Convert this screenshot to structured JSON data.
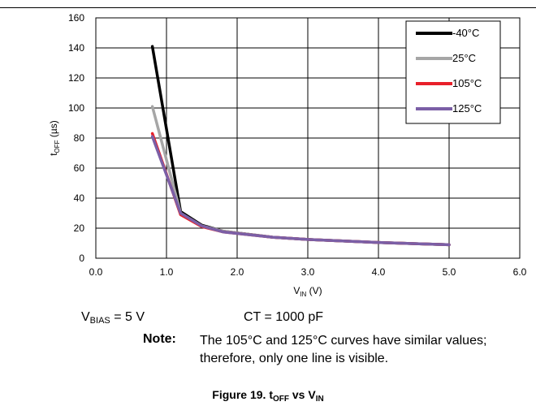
{
  "conditions": {
    "bias_label": "V",
    "bias_sub": "BIAS",
    "bias_value": " = 5 V",
    "ct_text": "CT = 1000 pF"
  },
  "note": {
    "label": "Note:",
    "text": "The 105°C and 125°C curves have similar values; therefore, only one line is visible."
  },
  "caption": {
    "prefix": "Figure 19. t",
    "sub1": "OFF",
    "mid": " vs V",
    "sub2": "IN"
  },
  "chart_data": {
    "type": "line",
    "xlabel": "V",
    "xlabel_sub": "IN",
    "xlabel_unit": " (V)",
    "ylabel": "t",
    "ylabel_sub": "OFF",
    "ylabel_unit": " (µs)",
    "xlim": [
      0,
      6
    ],
    "ylim": [
      0,
      160
    ],
    "xticks": [
      "0.0",
      "1.0",
      "2.0",
      "3.0",
      "4.0",
      "5.0",
      "6.0"
    ],
    "yticks": [
      "0",
      "20",
      "40",
      "60",
      "80",
      "100",
      "120",
      "140",
      "160"
    ],
    "grid": true,
    "legend": "top-right",
    "series": [
      {
        "name": "-40°C",
        "color": "#000000",
        "x": [
          0.8,
          1.2,
          1.5,
          1.8,
          2.5,
          3.0,
          4.0,
          5.0
        ],
        "y": [
          141,
          31,
          22,
          18,
          14,
          12.5,
          10.5,
          9
        ]
      },
      {
        "name": "25°C",
        "color": "#a6a6a6",
        "x": [
          0.8,
          1.2,
          1.5,
          1.8,
          2.5,
          3.0,
          4.0,
          5.0
        ],
        "y": [
          101,
          30,
          21.5,
          18,
          14,
          12.5,
          10.5,
          9
        ]
      },
      {
        "name": "105°C",
        "color": "#e8202a",
        "x": [
          0.8,
          1.2,
          1.5,
          1.8,
          2.5,
          3.0,
          4.0,
          5.0
        ],
        "y": [
          83,
          29,
          21,
          17.5,
          14,
          12.5,
          10.5,
          9
        ]
      },
      {
        "name": "125°C",
        "color": "#7b5fa6",
        "x": [
          0.8,
          1.2,
          1.5,
          1.8,
          2.5,
          3.0,
          4.0,
          5.0
        ],
        "y": [
          81,
          30,
          21.5,
          17.5,
          14,
          12.5,
          10.5,
          9
        ]
      }
    ]
  }
}
